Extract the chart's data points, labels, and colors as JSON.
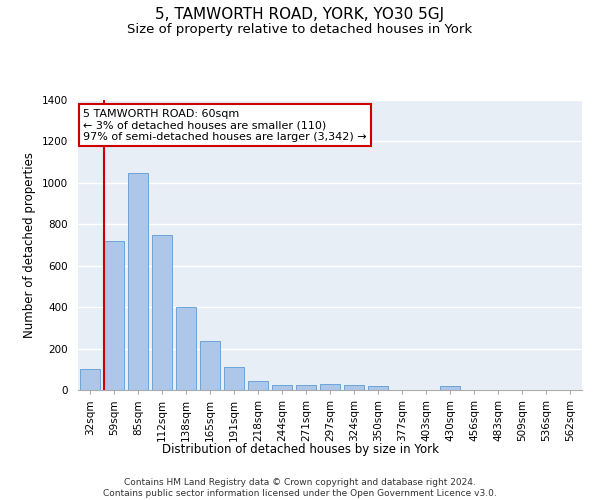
{
  "title": "5, TAMWORTH ROAD, YORK, YO30 5GJ",
  "subtitle": "Size of property relative to detached houses in York",
  "xlabel": "Distribution of detached houses by size in York",
  "ylabel": "Number of detached properties",
  "categories": [
    "32sqm",
    "59sqm",
    "85sqm",
    "112sqm",
    "138sqm",
    "165sqm",
    "191sqm",
    "218sqm",
    "244sqm",
    "271sqm",
    "297sqm",
    "324sqm",
    "350sqm",
    "377sqm",
    "403sqm",
    "430sqm",
    "456sqm",
    "483sqm",
    "509sqm",
    "536sqm",
    "562sqm"
  ],
  "values": [
    100,
    720,
    1050,
    750,
    400,
    235,
    110,
    45,
    25,
    25,
    30,
    25,
    20,
    0,
    0,
    20,
    0,
    0,
    0,
    0,
    0
  ],
  "bar_color": "#aec6e8",
  "bar_edge_color": "#5b9bd5",
  "bg_color": "#e8eef6",
  "grid_color": "#ffffff",
  "annotation_text": "5 TAMWORTH ROAD: 60sqm\n← 3% of detached houses are smaller (110)\n97% of semi-detached houses are larger (3,342) →",
  "annotation_box_color": "#ffffff",
  "annotation_box_edge_color": "#cc0000",
  "marker_color": "#cc0000",
  "ylim": [
    0,
    1400
  ],
  "yticks": [
    0,
    200,
    400,
    600,
    800,
    1000,
    1200,
    1400
  ],
  "footer": "Contains HM Land Registry data © Crown copyright and database right 2024.\nContains public sector information licensed under the Open Government Licence v3.0.",
  "title_fontsize": 11,
  "subtitle_fontsize": 9.5,
  "axis_label_fontsize": 8.5,
  "tick_fontsize": 7.5,
  "annotation_fontsize": 8,
  "footer_fontsize": 6.5
}
